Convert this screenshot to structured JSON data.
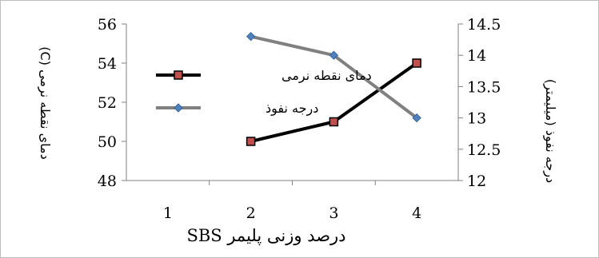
{
  "chart_data": {
    "type": "line",
    "categories": [
      "1",
      "2",
      "3",
      "4"
    ],
    "series": [
      {
        "name": "دمای نقطه نرمی",
        "axis": "left",
        "values": [
          null,
          50,
          51,
          54
        ],
        "color": "#000000",
        "marker": "square",
        "marker_fill": "#c0504d"
      },
      {
        "name": "درجه نفوذ",
        "axis": "right",
        "values": [
          null,
          14.3,
          14,
          13
        ],
        "color": "#808080",
        "marker": "diamond",
        "marker_fill": "#4f81bd"
      }
    ],
    "xlabel": "درصد وزنی پلیمر SBS",
    "ylabel_left": "دمای نقطه نرمی (C)",
    "ylabel_right": "درجه نفوذ (میلیمتر)",
    "y_left": {
      "min": 48,
      "max": 56,
      "ticks": [
        "48",
        "50",
        "52",
        "54",
        "56"
      ]
    },
    "y_right": {
      "min": 12,
      "max": 14.5,
      "ticks": [
        "12",
        "12.5",
        "13",
        "13.5",
        "14",
        "14.5"
      ]
    },
    "x_ticks": [
      "1",
      "2",
      "3",
      "4"
    ],
    "grid": false,
    "legend_position": "center-left"
  }
}
